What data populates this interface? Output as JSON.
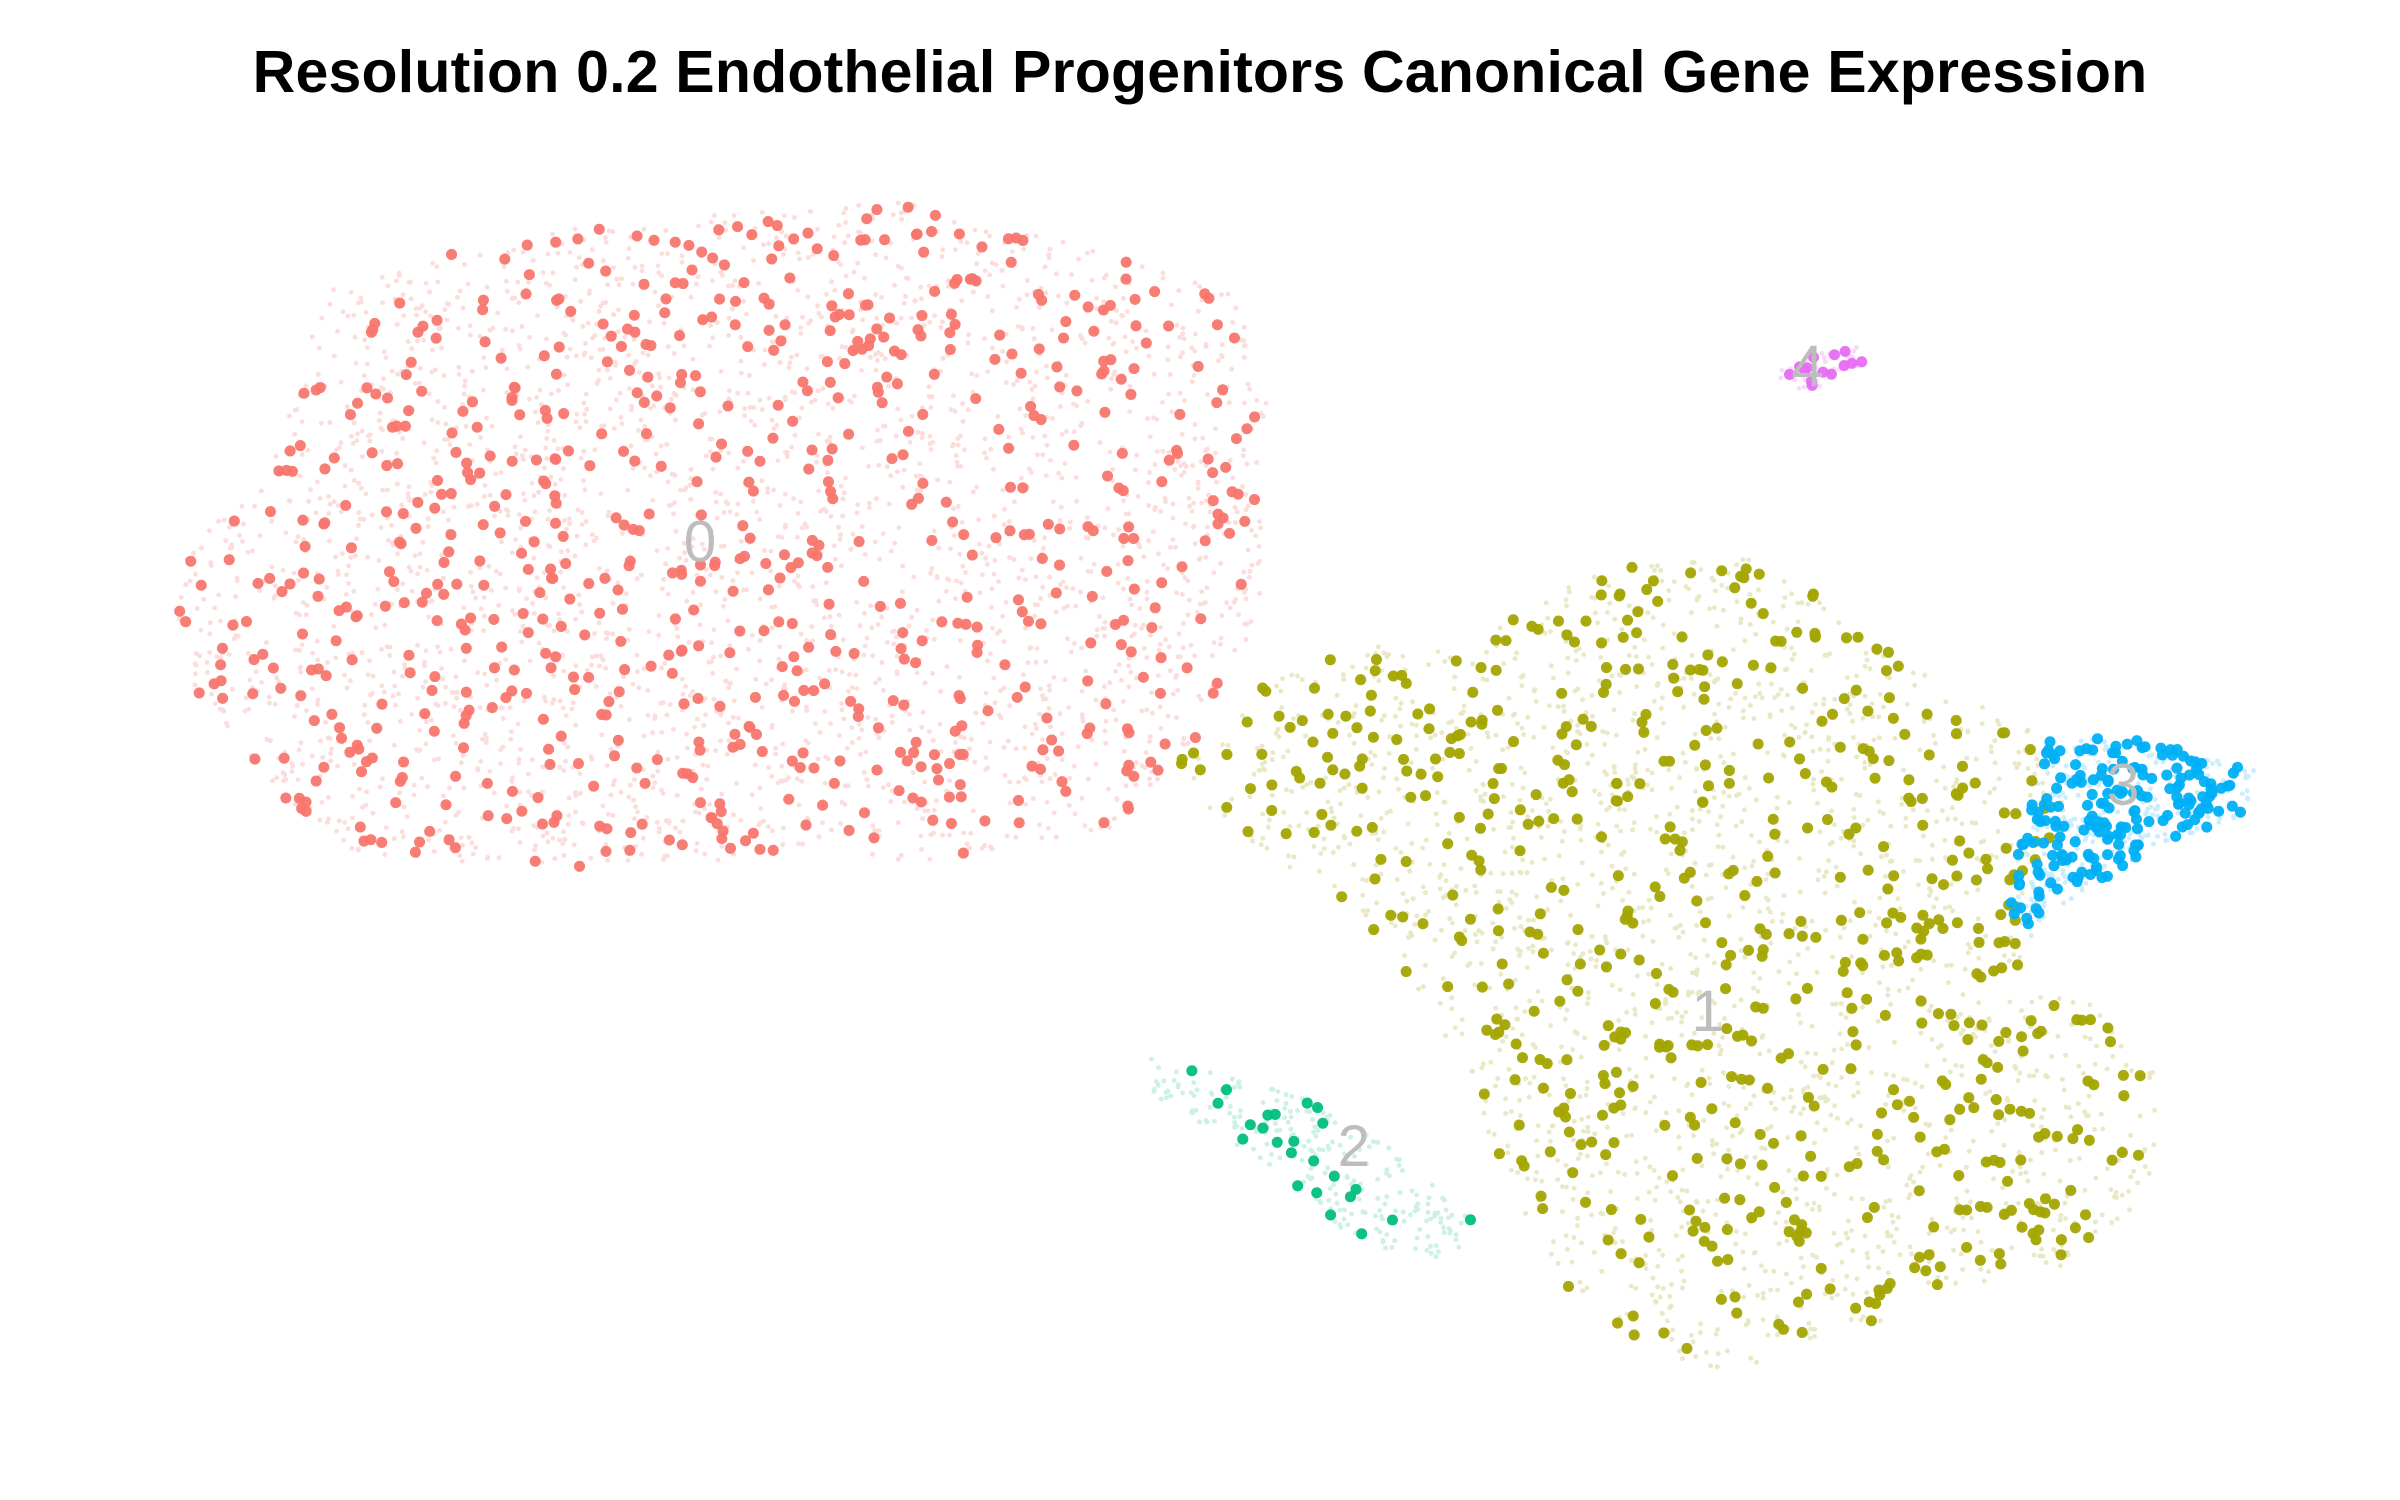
{
  "chart_data": {
    "type": "scatter",
    "title": "Resolution 0.2 Endothelial Progenitors Canonical Gene Expression",
    "xlabel": "",
    "ylabel": "",
    "axes_visible": false,
    "grid": false,
    "legend": "none",
    "point_style": "highlighted cells drawn as solid dots over a faint background of all cells in the same cluster colour",
    "series": [
      {
        "name": "0",
        "label": "0",
        "color": "#F8766D",
        "background_color": "#FBDCDA",
        "estimated_cells": 2600,
        "highlighted_cells": 720,
        "centroid": [
          455,
          357
        ],
        "region": [
          [
            110,
            375
          ],
          [
            175,
            300
          ],
          [
            210,
            190
          ],
          [
            330,
            150
          ],
          [
            590,
            130
          ],
          [
            800,
            185
          ],
          [
            825,
            255
          ],
          [
            820,
            400
          ],
          [
            780,
            480
          ],
          [
            720,
            540
          ],
          [
            600,
            560
          ],
          [
            500,
            555
          ],
          [
            420,
            565
          ],
          [
            300,
            560
          ],
          [
            230,
            555
          ],
          [
            180,
            520
          ],
          [
            130,
            460
          ]
        ]
      },
      {
        "name": "1",
        "label": "1",
        "color": "#A3A500",
        "background_color": "#E8E8C4",
        "estimated_cells": 2500,
        "highlighted_cells": 620,
        "centroid": [
          1110,
          662
        ],
        "region": [
          [
            760,
            495
          ],
          [
            820,
            445
          ],
          [
            880,
            420
          ],
          [
            950,
            420
          ],
          [
            1040,
            370
          ],
          [
            1140,
            360
          ],
          [
            1200,
            400
          ],
          [
            1270,
            450
          ],
          [
            1330,
            480
          ],
          [
            1345,
            540
          ],
          [
            1310,
            600
          ],
          [
            1320,
            640
          ],
          [
            1370,
            650
          ],
          [
            1410,
            700
          ],
          [
            1395,
            780
          ],
          [
            1330,
            830
          ],
          [
            1260,
            840
          ],
          [
            1200,
            870
          ],
          [
            1140,
            895
          ],
          [
            1080,
            880
          ],
          [
            1020,
            840
          ],
          [
            980,
            770
          ],
          [
            950,
            690
          ],
          [
            900,
            610
          ],
          [
            860,
            580
          ],
          [
            790,
            530
          ]
        ]
      },
      {
        "name": "2",
        "label": "2",
        "color": "#00BF7D",
        "background_color": "#CCF0E0",
        "estimated_cells": 240,
        "highlighted_cells": 24,
        "centroid": [
          880,
          750
        ],
        "region": [
          [
            748,
            685
          ],
          [
            800,
            700
          ],
          [
            870,
            720
          ],
          [
            920,
            760
          ],
          [
            965,
            800
          ],
          [
            940,
            818
          ],
          [
            880,
            808
          ],
          [
            830,
            760
          ],
          [
            780,
            730
          ],
          [
            750,
            715
          ]
        ]
      },
      {
        "name": "3",
        "label": "3",
        "color": "#00B0F6",
        "background_color": "#C9ECFC",
        "estimated_cells": 300,
        "highlighted_cells": 190,
        "centroid": [
          1380,
          515
        ],
        "region": [
          [
            1330,
            480
          ],
          [
            1400,
            480
          ],
          [
            1465,
            500
          ],
          [
            1460,
            530
          ],
          [
            1400,
            550
          ],
          [
            1370,
            570
          ],
          [
            1340,
            590
          ],
          [
            1320,
            610
          ],
          [
            1305,
            590
          ],
          [
            1315,
            540
          ]
        ]
      },
      {
        "name": "4",
        "label": "4",
        "color": "#E76BF3",
        "background_color": "#F8D8FB",
        "estimated_cells": 40,
        "highlighted_cells": 14,
        "centroid": [
          1175,
          243
        ],
        "region": [
          [
            1155,
            240
          ],
          [
            1180,
            230
          ],
          [
            1210,
            225
          ],
          [
            1215,
            235
          ],
          [
            1190,
            250
          ],
          [
            1160,
            255
          ]
        ]
      }
    ],
    "data_coordinate_system": "plot pixel space of the reference figure (x right, y down), width 1560, height 975"
  }
}
